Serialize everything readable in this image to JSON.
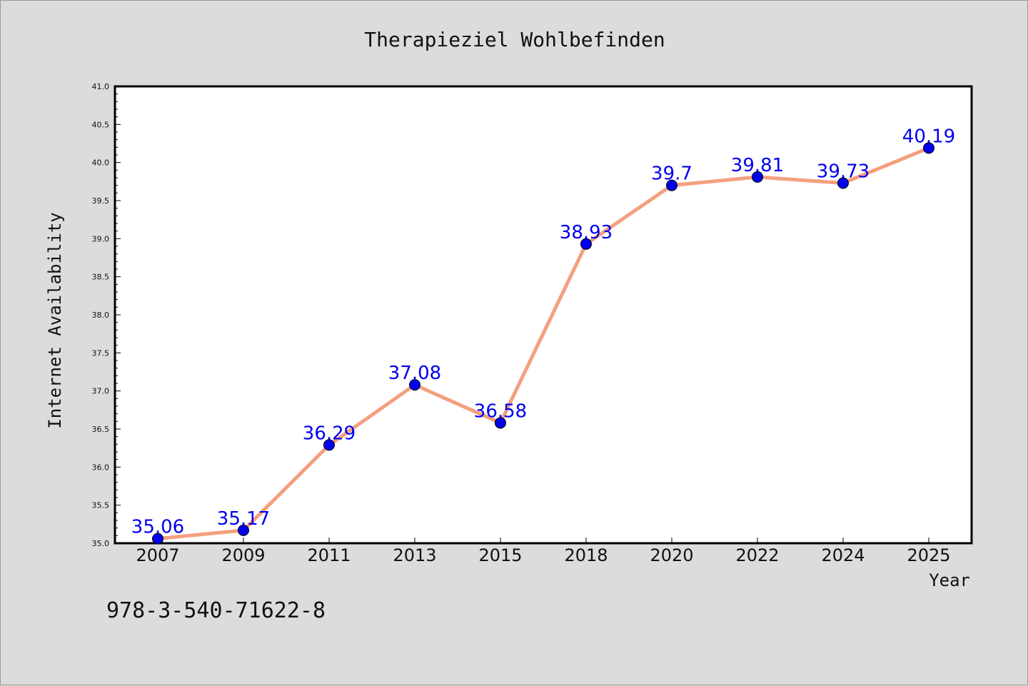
{
  "chart_data": {
    "type": "line",
    "title": "Therapieziel Wohlbefinden",
    "xlabel": "Year",
    "ylabel": "Internet Availability",
    "categories": [
      "2007",
      "2009",
      "2011",
      "2013",
      "2015",
      "2018",
      "2020",
      "2022",
      "2024",
      "2025"
    ],
    "values": [
      35.06,
      35.17,
      36.29,
      37.08,
      36.58,
      38.93,
      39.7,
      39.81,
      39.73,
      40.19
    ],
    "data_labels": [
      "35.06",
      "35.17",
      "36.29",
      "37.08",
      "36.58",
      "38.93",
      "39.7",
      "39.81",
      "39.73",
      "40.19"
    ],
    "ylim": [
      35.0,
      41.0
    ],
    "yticks": [
      "35.0",
      "35.5",
      "36.0",
      "36.5",
      "37.0",
      "37.5",
      "38.0",
      "38.5",
      "39.0",
      "39.5",
      "40.0",
      "40.5",
      "41.0"
    ],
    "grid": false,
    "line_color": "#f4a07f",
    "marker_color": "#0000ee",
    "label_color": "#0000ee"
  },
  "footer_text": "978-3-540-71622-8"
}
